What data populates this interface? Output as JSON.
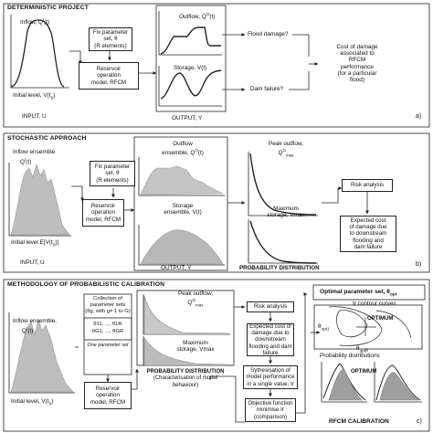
{
  "sectionA": {
    "title": "DETERMINISTIC PROJECT",
    "inflow_label": "Inflow, Q",
    "inflow_sup": "I",
    "inflow_t": "(t)",
    "initial_level": "Initial level, V(t",
    "initial_level_sub": "0",
    "initial_level_end": ")",
    "input": "INPUT, U",
    "fix_box": [
      "Fix parameter",
      "set, θ",
      "(R elements)"
    ],
    "model_box": [
      "Reservoir",
      "operation",
      "model, RFCM"
    ],
    "outflow": "Outflow, Q",
    "outflow_sup": "O",
    "outflow_t": "(t)",
    "storage": "Storage, V(t)",
    "output": "OUTPUT, Y",
    "flood_damage": "Flood damage?",
    "dam_failure": "Dam failure?",
    "cost_text": [
      "Cost of damage",
      "associated to",
      "RFCM",
      "performance",
      "(for a particular",
      "flood)"
    ],
    "tag": "a)"
  },
  "sectionB": {
    "title": "STOCHASTIC APPROACH",
    "inflow_label": "Inflow ensemble",
    "inflow_q": "Q",
    "inflow_sup": "I",
    "inflow_t": "(t)",
    "initial_level": "Initial level  E[V(t",
    "initial_level_sub": "0",
    "initial_level_end": ")]",
    "input": "INPUT, U",
    "fix_box": [
      "Fix parameter",
      "set, θ",
      "(R elements)"
    ],
    "model_box": [
      "Reservoir",
      "operation",
      "model, RFCM"
    ],
    "outflow_line1": "Outflow",
    "outflow_line2": "ensemble, Q",
    "outflow_sup": "O",
    "outflow_t": "(t)",
    "storage_line1": "Storage",
    "storage_line2": "ensemble, V(t)",
    "output": "OUTPUT, Y",
    "peak_line1": "Peak outflow,",
    "peak_q": "Q",
    "peak_sup": "O",
    "peak_sub": "max",
    "maxstor_line1": "Maximum",
    "maxstor_line2": "storage, Vmax",
    "prob_dist": "PROBABILITY DISTRIBUTION",
    "risk_box": "Risk analysis",
    "expected_box": [
      "Expected cost",
      "of damage due",
      "to downstream",
      "flooding and",
      "dam failure"
    ],
    "tag": "b)"
  },
  "sectionC": {
    "title": "METHODOLOGY OF PROBABILISTIC CALIBRATION",
    "inflow_label1": "Inflow ensemble,",
    "inflow_q": "Q",
    "inflow_sup": "I",
    "inflow_t": "(t)",
    "initial_level": "Initial level, V(t",
    "initial_level_sub": "0",
    "initial_level_end": ")",
    "collection": [
      "Collection of",
      "parameter sets",
      "(θg, with g= 1 to G)"
    ],
    "theta_row1": "θ11, ..., θ1R",
    "theta_row2": "θG1, ..., θGR",
    "one_param": "One parameter set",
    "model_box": [
      "Reservoir",
      "operation",
      "model, RFCM"
    ],
    "peak_line1": "Peak outflow,",
    "peak_q": "Q",
    "peak_sup": "O",
    "peak_sub": "max",
    "maxstor_line1": "Maximum",
    "maxstor_line2": "storage, Vmax",
    "prob_dist1": "PROBABILITY DISTRIBUTION",
    "prob_dist2": "(Characterisation of model",
    "prob_dist3": "behaviour)",
    "risk": "Risk analysis",
    "expected_box": [
      "Expected cost of",
      "damage due to",
      "downstream",
      "flooding and dam",
      "failure"
    ],
    "synth_box": [
      "Sythesisation of",
      "model performance",
      "in a single value, Ir"
    ],
    "objective_box": [
      "Objective function",
      "minimise Ir",
      "(comparison)"
    ],
    "optimal_box": "Optimal parameter set, θ",
    "optimal_sub": "opt",
    "contour_label": "Ir contour curves",
    "optimum1": "OPTIMUM",
    "theta_opt1": "θ",
    "theta_opt1_sub": "opt1",
    "theta_optR": "θ",
    "theta_optR_sub": "optR",
    "prob_dists": "Probability distributions",
    "optimum2": "OPTIMUM",
    "calibration": "RFCM CALIBRATION",
    "tag": "c)"
  }
}
